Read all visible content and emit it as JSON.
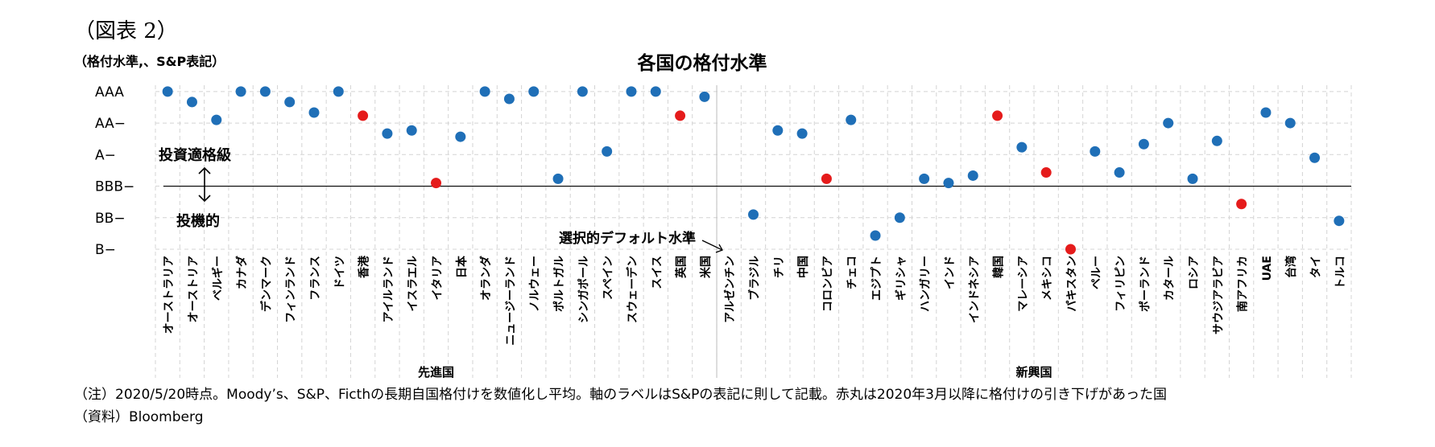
{
  "figure_label": "（図表 2）",
  "notes": {
    "note": "（注）2020/5/20時点。Moody’s、S&P、Ficthの長期自国格付けを数値化し平均。軸のラベルはS&Pの表記に則して記載。赤丸は2020年3月以降に格付けの引き下げがあった国",
    "source": "（資料）Bloomberg"
  },
  "colors": {
    "normal": "#1f6fb7",
    "downgraded": "#e51b1b",
    "grid": "#d4d4d4"
  },
  "chart_data": {
    "type": "scatter",
    "title": "各国の格付水準",
    "ylabel": "（格付水準,、S&P表記）",
    "y_ticks": [
      {
        "label": "AAA",
        "value": 21
      },
      {
        "label": "AA−",
        "value": 18
      },
      {
        "label": "A−",
        "value": 15
      },
      {
        "label": "BBB−",
        "value": 12
      },
      {
        "label": "BB−",
        "value": 9
      },
      {
        "label": "B−",
        "value": 6
      }
    ],
    "ylim": [
      6,
      21.6
    ],
    "threshold": {
      "value": 12,
      "upper_label": "投資適格級",
      "lower_label": "投機的"
    },
    "default_label": "選択的デフォルト水準",
    "groups": [
      {
        "name": "先進国",
        "count": 23
      },
      {
        "name": "新興国",
        "count": 26
      }
    ],
    "points": [
      {
        "country": "オーストラリア",
        "value": 21.0,
        "downgraded": false
      },
      {
        "country": "オーストリア",
        "value": 20.0,
        "downgraded": false
      },
      {
        "country": "ベルギー",
        "value": 18.3,
        "downgraded": false
      },
      {
        "country": "カナダ",
        "value": 21.0,
        "downgraded": false
      },
      {
        "country": "デンマーク",
        "value": 21.0,
        "downgraded": false
      },
      {
        "country": "フィンランド",
        "value": 20.0,
        "downgraded": false
      },
      {
        "country": "フランス",
        "value": 19.0,
        "downgraded": false
      },
      {
        "country": "ドイツ",
        "value": 21.0,
        "downgraded": false
      },
      {
        "country": "香港",
        "value": 18.7,
        "downgraded": true
      },
      {
        "country": "アイルランド",
        "value": 17.0,
        "downgraded": false
      },
      {
        "country": "イスラエル",
        "value": 17.3,
        "downgraded": false
      },
      {
        "country": "イタリア",
        "value": 12.3,
        "downgraded": true
      },
      {
        "country": "日本",
        "value": 16.7,
        "downgraded": false
      },
      {
        "country": "オランダ",
        "value": 21.0,
        "downgraded": false
      },
      {
        "country": "ニュージーランド",
        "value": 20.3,
        "downgraded": false
      },
      {
        "country": "ノルウェー",
        "value": 21.0,
        "downgraded": false
      },
      {
        "country": "ポルトガル",
        "value": 12.7,
        "downgraded": false
      },
      {
        "country": "シンガポール",
        "value": 21.0,
        "downgraded": false
      },
      {
        "country": "スペイン",
        "value": 15.3,
        "downgraded": false
      },
      {
        "country": "スウェーデン",
        "value": 21.0,
        "downgraded": false
      },
      {
        "country": "スイス",
        "value": 21.0,
        "downgraded": false
      },
      {
        "country": "英国",
        "value": 18.7,
        "downgraded": true
      },
      {
        "country": "米国",
        "value": 20.5,
        "downgraded": false
      },
      {
        "country": "アルゼンチン",
        "value": null,
        "downgraded": false
      },
      {
        "country": "ブラジル",
        "value": 9.3,
        "downgraded": false
      },
      {
        "country": "チリ",
        "value": 17.3,
        "downgraded": false
      },
      {
        "country": "中国",
        "value": 17.0,
        "downgraded": false
      },
      {
        "country": "コロンビア",
        "value": 12.7,
        "downgraded": true
      },
      {
        "country": "チェコ",
        "value": 18.3,
        "downgraded": false
      },
      {
        "country": "エジプト",
        "value": 7.3,
        "downgraded": false
      },
      {
        "country": "ギリシャ",
        "value": 9.0,
        "downgraded": false
      },
      {
        "country": "ハンガリー",
        "value": 12.7,
        "downgraded": false
      },
      {
        "country": "インド",
        "value": 12.3,
        "downgraded": false
      },
      {
        "country": "インドネシア",
        "value": 13.0,
        "downgraded": false
      },
      {
        "country": "韓国",
        "value": 18.7,
        "downgraded": true
      },
      {
        "country": "マレーシア",
        "value": 15.7,
        "downgraded": false
      },
      {
        "country": "メキシコ",
        "value": 13.3,
        "downgraded": true
      },
      {
        "country": "パキスタン",
        "value": 6.0,
        "downgraded": true
      },
      {
        "country": "ペルー",
        "value": 15.3,
        "downgraded": false
      },
      {
        "country": "フィリピン",
        "value": 13.3,
        "downgraded": false
      },
      {
        "country": "ポーランド",
        "value": 16.0,
        "downgraded": false
      },
      {
        "country": "カタール",
        "value": 18.0,
        "downgraded": false
      },
      {
        "country": "ロシア",
        "value": 12.7,
        "downgraded": false
      },
      {
        "country": "サウジアラビア",
        "value": 16.3,
        "downgraded": false
      },
      {
        "country": "南アフリカ",
        "value": 10.3,
        "downgraded": true
      },
      {
        "country": "UAE",
        "value": 19.0,
        "downgraded": false
      },
      {
        "country": "台湾",
        "value": 18.0,
        "downgraded": false
      },
      {
        "country": "タイ",
        "value": 14.7,
        "downgraded": false
      },
      {
        "country": "トルコ",
        "value": 8.7,
        "downgraded": false
      }
    ]
  }
}
